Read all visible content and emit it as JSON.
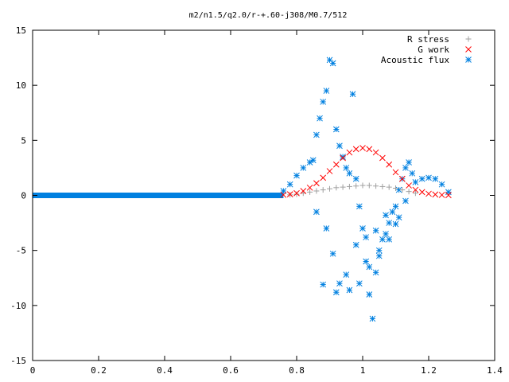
{
  "chart_data": {
    "type": "scatter",
    "title": "m2/n1.5/q2.0/r-+.60-j308/M0.7/512",
    "xlabel": "",
    "ylabel": "",
    "xlim": [
      0,
      1.4
    ],
    "ylim": [
      -15,
      15
    ],
    "x_ticks": [
      "0",
      "0.2",
      "0.4",
      "0.6",
      "0.8",
      "1",
      "1.2",
      "1.4"
    ],
    "y_ticks": [
      "15",
      "10",
      "5",
      "0",
      "-5",
      "-10",
      "-15"
    ],
    "grid": false,
    "legend_position": "top-right",
    "series": [
      {
        "name": "R stress",
        "marker": "plus",
        "color": "#a0a0a0",
        "x": [
          0.78,
          0.8,
          0.82,
          0.84,
          0.86,
          0.88,
          0.9,
          0.92,
          0.94,
          0.96,
          0.98,
          1.0,
          1.02,
          1.04,
          1.06,
          1.08,
          1.1,
          1.12,
          1.14,
          1.16
        ],
        "y": [
          0.05,
          0.1,
          0.2,
          0.3,
          0.4,
          0.5,
          0.6,
          0.7,
          0.75,
          0.8,
          0.85,
          0.9,
          0.9,
          0.85,
          0.8,
          0.75,
          0.65,
          0.5,
          0.35,
          0.2
        ]
      },
      {
        "name": "G work",
        "marker": "cross",
        "color": "#ff0000",
        "x": [
          0.76,
          0.78,
          0.8,
          0.82,
          0.84,
          0.86,
          0.88,
          0.9,
          0.92,
          0.94,
          0.96,
          0.98,
          1.0,
          1.02,
          1.04,
          1.06,
          1.08,
          1.1,
          1.12,
          1.14,
          1.16,
          1.18,
          1.2,
          1.22,
          1.24,
          1.26
        ],
        "y": [
          0.05,
          0.1,
          0.2,
          0.4,
          0.7,
          1.1,
          1.6,
          2.2,
          2.8,
          3.4,
          3.9,
          4.2,
          4.3,
          4.2,
          3.9,
          3.4,
          2.8,
          2.1,
          1.5,
          0.9,
          0.5,
          0.3,
          0.15,
          0.08,
          0.04,
          0.02
        ]
      },
      {
        "name": "Acoustic flux",
        "marker": "star",
        "color": "#0080e0",
        "x": [
          0.76,
          0.78,
          0.8,
          0.82,
          0.84,
          0.85,
          0.86,
          0.87,
          0.88,
          0.89,
          0.9,
          0.91,
          0.92,
          0.93,
          0.94,
          0.95,
          0.96,
          0.97,
          0.98,
          0.99,
          1.0,
          1.01,
          1.02,
          1.03,
          1.04,
          1.05,
          1.06,
          1.07,
          1.08,
          1.09,
          1.1,
          1.11,
          1.12,
          1.13,
          1.14,
          1.15,
          1.16,
          1.18,
          1.2,
          1.22,
          1.24,
          1.26,
          0.86,
          0.89,
          0.91,
          0.93,
          0.96,
          0.99,
          1.02,
          1.05,
          1.08,
          1.11,
          0.88,
          0.92,
          0.95,
          0.98,
          1.01,
          1.04,
          1.07,
          1.1,
          1.13
        ],
        "y": [
          0.4,
          1.0,
          1.8,
          2.5,
          3.0,
          3.2,
          5.5,
          7.0,
          8.5,
          9.5,
          12.3,
          12.0,
          6.0,
          4.5,
          3.5,
          2.5,
          2.0,
          9.2,
          1.5,
          -1.0,
          -3.0,
          -6.0,
          -9.0,
          -11.2,
          -7.0,
          -5.5,
          -4.0,
          -3.5,
          -2.5,
          -1.5,
          -1.0,
          0.5,
          1.5,
          2.5,
          3.0,
          2.0,
          1.2,
          1.5,
          1.6,
          1.5,
          1.0,
          0.3,
          -1.5,
          -3.0,
          -5.3,
          -8.0,
          -8.6,
          -8.0,
          -6.5,
          -5.0,
          -4.0,
          -2.0,
          -8.1,
          -8.8,
          -7.2,
          -4.5,
          -3.8,
          -3.2,
          -1.8,
          -2.6,
          -0.5
        ]
      }
    ]
  }
}
